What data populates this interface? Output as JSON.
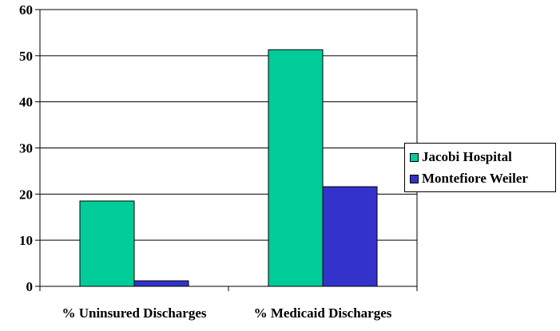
{
  "chart_data": {
    "type": "bar",
    "categories": [
      "% Uninsured Discharges",
      "% Medicaid Discharges"
    ],
    "series": [
      {
        "name": "Jacobi Hospital",
        "values": [
          18.5,
          51.3
        ],
        "color": "#00CC99"
      },
      {
        "name": "Montefiore Weiler",
        "values": [
          1.2,
          21.6
        ],
        "color": "#3333CC"
      }
    ],
    "yticks": [
      0,
      10,
      20,
      30,
      40,
      50,
      60
    ],
    "ylim": [
      0,
      60
    ],
    "grid": true,
    "legend_position": "right"
  }
}
